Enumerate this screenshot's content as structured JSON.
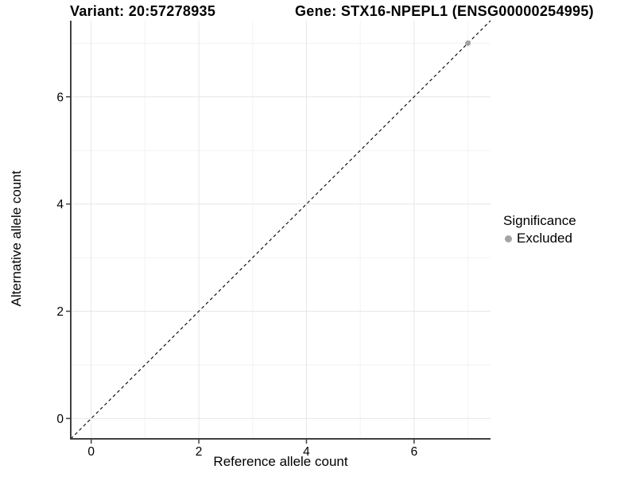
{
  "titles": {
    "variant": "Variant: 20:57278935",
    "gene": "Gene: STX16-NPEPL1 (ENSG00000254995)"
  },
  "legend": {
    "title": "Significance",
    "position": "right",
    "items": [
      {
        "label": "Excluded",
        "color": "#A4A4A4",
        "marker": "circle"
      }
    ]
  },
  "chart_data": {
    "type": "scatter",
    "xlabel": "Reference allele count",
    "ylabel": "Alternative allele count",
    "xlim": [
      -0.38,
      7.42
    ],
    "ylim": [
      -0.38,
      7.42
    ],
    "x_major_ticks": [
      0,
      2,
      4,
      6
    ],
    "y_major_ticks": [
      0,
      2,
      4,
      6
    ],
    "x_minor_ticks": [
      1,
      3,
      5,
      7
    ],
    "y_minor_ticks": [
      1,
      3,
      5,
      7
    ],
    "grid": "major-and-minor",
    "legend_position": "right",
    "reference_line": {
      "kind": "identity",
      "equation": "y = x",
      "linestyle": "dashed",
      "color": "#000000"
    },
    "series": [
      {
        "name": "Excluded",
        "color": "#A4A4A4",
        "marker_radius": 3.5,
        "points": [
          [
            7,
            7
          ]
        ]
      }
    ],
    "colors": {
      "axis_line": "#404040",
      "tick_mark": "#404040",
      "grid_major": "#E7E7E7",
      "grid_minor": "#F3F3F3",
      "tick_label": "#000000"
    }
  }
}
